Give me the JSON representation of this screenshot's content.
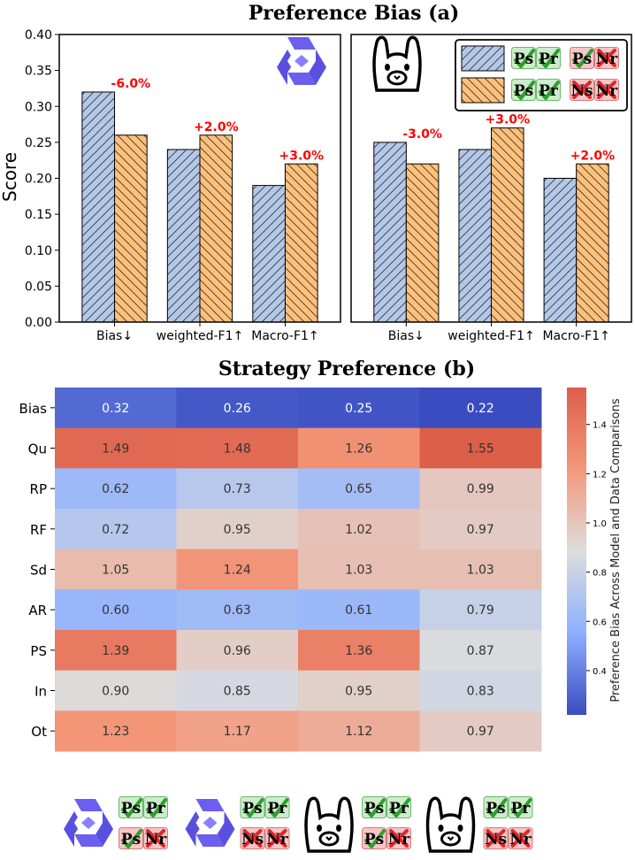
{
  "colors": {
    "blue_bar": "#b3c8e8",
    "orange_bar": "#ffc07a",
    "label_red": "#ff0000",
    "heat_low": "#3b4cc0",
    "heat_mid": "#dddddd",
    "heat_high": "#dc5f4a",
    "check": "#2e9d2e",
    "cross": "#e1262b",
    "tile_green": "#cdeccb",
    "tile_red": "#f6c6c6"
  },
  "legend_tiles": {
    "row1": [
      "Ps",
      "Pr",
      "Ps",
      "Nr"
    ],
    "row2": [
      "Ps",
      "Pr",
      "Ns",
      "Nr"
    ]
  },
  "chart_data": [
    {
      "type": "bar",
      "title": "Preference Bias (a)",
      "panel": "qwen",
      "panel_icon": "qwen-logo-icon",
      "ylabel": "Score",
      "ylim": [
        0.0,
        0.4
      ],
      "yticks": [
        "0.00",
        "0.05",
        "0.10",
        "0.15",
        "0.20",
        "0.25",
        "0.30",
        "0.35",
        "0.40"
      ],
      "categories": [
        "Bias↓",
        "weighted-F1↑",
        "Macro-F1↑"
      ],
      "series": [
        {
          "name": "Ps Pr vs Ps Nr",
          "values": [
            0.32,
            0.24,
            0.19
          ]
        },
        {
          "name": "Ps Pr vs Ns Nr",
          "values": [
            0.26,
            0.26,
            0.22
          ]
        }
      ],
      "annotations": [
        "-6.0%",
        "+2.0%",
        "+3.0%"
      ]
    },
    {
      "type": "bar",
      "panel": "llama",
      "panel_icon": "llama-logo-icon",
      "ylim": [
        0.0,
        0.4
      ],
      "categories": [
        "Bias↓",
        "weighted-F1↑",
        "Macro-F1↑"
      ],
      "series": [
        {
          "name": "Ps Pr vs Ps Nr",
          "values": [
            0.25,
            0.24,
            0.2
          ]
        },
        {
          "name": "Ps Pr vs Ns Nr",
          "values": [
            0.22,
            0.27,
            0.22
          ]
        }
      ],
      "annotations": [
        "-3.0%",
        "+3.0%",
        "+2.0%"
      ]
    },
    {
      "type": "heatmap",
      "title": "Strategy Preference (b)",
      "rows": [
        "Bias",
        "Qu",
        "RP",
        "RF",
        "Sd",
        "AR",
        "PS",
        "In",
        "Ot"
      ],
      "columns": [
        "Qwen: Ps Pr vs Ps Nr",
        "Qwen: Ps Pr vs Ns Nr",
        "Llama: Ps Pr vs Ps Nr",
        "Llama: Ps Pr vs Ns Nr"
      ],
      "values": [
        [
          "0.32",
          "0.26",
          "0.25",
          "0.22"
        ],
        [
          "1.49",
          "1.48",
          "1.26",
          "1.55"
        ],
        [
          "0.62",
          "0.73",
          "0.65",
          "0.99"
        ],
        [
          "0.72",
          "0.95",
          "1.02",
          "0.97"
        ],
        [
          "1.05",
          "1.24",
          "1.03",
          "1.03"
        ],
        [
          "0.60",
          "0.63",
          "0.61",
          "0.79"
        ],
        [
          "1.39",
          "0.96",
          "1.36",
          "0.87"
        ],
        [
          "0.90",
          "0.85",
          "0.95",
          "0.83"
        ],
        [
          "1.23",
          "1.17",
          "1.12",
          "0.97"
        ]
      ],
      "colorbar": {
        "label": "Preference Bias Across Model and Data Comparisons",
        "range": [
          0.22,
          1.55
        ],
        "ticks": [
          "0.4",
          "0.6",
          "0.8",
          "1.0",
          "1.2",
          "1.4"
        ]
      }
    }
  ]
}
